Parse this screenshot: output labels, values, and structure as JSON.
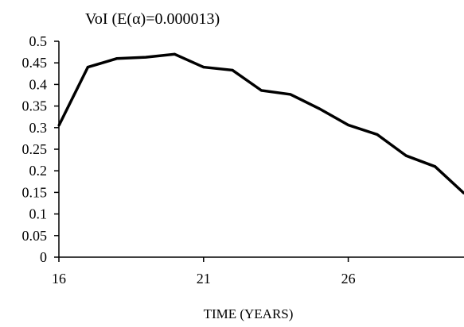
{
  "chart_data": {
    "type": "line",
    "title": "VoI (E(α)=0.000013)",
    "xlabel": "TIME (YEARS)",
    "ylabel": "",
    "xlim": [
      16,
      30
    ],
    "ylim": [
      0,
      0.5
    ],
    "x_ticks": [
      16,
      21,
      26
    ],
    "x_tick_labels": [
      "16",
      "21",
      "26"
    ],
    "y_ticks": [
      0,
      0.05,
      0.1,
      0.15,
      0.2,
      0.25,
      0.3,
      0.35,
      0.4,
      0.45,
      0.5
    ],
    "y_tick_labels": [
      "0",
      "0.05",
      "0.1",
      "0.15",
      "0.2",
      "0.25",
      "0.3",
      "0.35",
      "0.4",
      "0.45",
      "0.5"
    ],
    "grid": false,
    "legend": "none",
    "line_color": "#000000",
    "series": [
      {
        "x": [
          16,
          17,
          18,
          19,
          20,
          21,
          22,
          23,
          24,
          25,
          26,
          27,
          28,
          29,
          30
        ],
        "y": [
          0.305,
          0.44,
          0.46,
          0.463,
          0.47,
          0.44,
          0.433,
          0.386,
          0.377,
          0.344,
          0.306,
          0.284,
          0.235,
          0.21,
          0.148
        ]
      }
    ]
  }
}
